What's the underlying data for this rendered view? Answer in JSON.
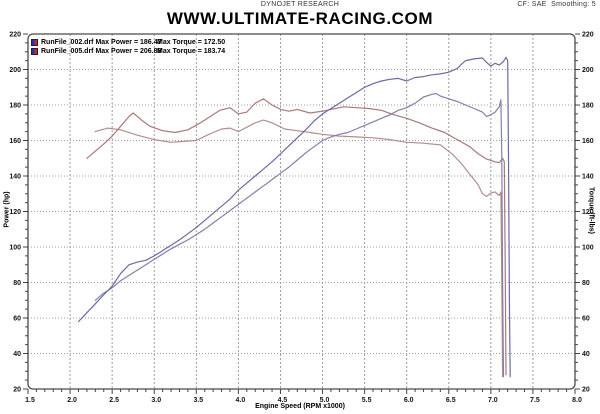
{
  "header": {
    "app_title": "DYNOJET RESEARCH",
    "settings": "CF: SAE  Smoothing: 5"
  },
  "legend": {
    "rows": [
      {
        "label": "RunFile_002.drf Max Power = 186.47",
        "torque": "Max Torque = 172.50"
      },
      {
        "label": "RunFile_005.drf Max Power = 206.88",
        "torque": "Max Torque = 183.74"
      }
    ],
    "swatch_colors": {
      "power": "#2233bb",
      "torque": "#cc2222"
    }
  },
  "chart_data": {
    "type": "line",
    "title": "WWW.ULTIMATE-RACING.COM",
    "xlabel": "Engine Speed (RPM x1000)",
    "ylabel_left": "Power (hp)",
    "ylabel_right": "Torque (ft-lbs)",
    "xlim": [
      1.5,
      8.0
    ],
    "ylim": [
      20,
      220
    ],
    "x_ticks": [
      1.5,
      2.0,
      2.5,
      3.0,
      3.5,
      4.0,
      4.5,
      5.0,
      5.5,
      6.0,
      6.5,
      7.0,
      7.5,
      8.0
    ],
    "y_ticks": [
      20,
      40,
      60,
      80,
      100,
      120,
      140,
      160,
      180,
      200,
      220
    ],
    "x_minor_step": 0.1,
    "y_minor_step": 5,
    "grid": "dotted",
    "grid_color": "#9c9c9c",
    "frame_color": "#4a4a4a",
    "tick_color": "#444444",
    "legend_position": "top-left",
    "series": [
      {
        "id": "runfile-002-torque",
        "name": "RunFile_002 Torque (max 172.50 ft-lbs)",
        "axis": "right",
        "color": "#b48e8e",
        "points": [
          [
            2.3,
            165
          ],
          [
            2.45,
            167
          ],
          [
            2.6,
            166
          ],
          [
            2.8,
            163
          ],
          [
            3.0,
            160.5
          ],
          [
            3.2,
            159
          ],
          [
            3.35,
            159.5
          ],
          [
            3.5,
            160
          ],
          [
            3.65,
            163.5
          ],
          [
            3.8,
            166.5
          ],
          [
            3.9,
            167
          ],
          [
            4.0,
            165
          ],
          [
            4.1,
            167.5
          ],
          [
            4.2,
            170
          ],
          [
            4.3,
            171.5
          ],
          [
            4.4,
            170
          ],
          [
            4.55,
            166.5
          ],
          [
            4.7,
            165.5
          ],
          [
            4.85,
            164.5
          ],
          [
            5.0,
            163.5
          ],
          [
            5.2,
            162.5
          ],
          [
            5.4,
            162
          ],
          [
            5.6,
            161.5
          ],
          [
            5.8,
            160.5
          ],
          [
            6.0,
            159
          ],
          [
            6.2,
            158.5
          ],
          [
            6.4,
            157.5
          ],
          [
            6.55,
            152
          ],
          [
            6.65,
            147
          ],
          [
            6.75,
            141
          ],
          [
            6.85,
            135
          ],
          [
            6.9,
            130
          ],
          [
            6.95,
            128.5
          ],
          [
            7.0,
            130.5
          ],
          [
            7.05,
            131
          ],
          [
            7.1,
            129
          ],
          [
            7.12,
            131
          ],
          [
            7.13,
            80
          ],
          [
            7.14,
            27
          ]
        ]
      },
      {
        "id": "runfile-005-torque",
        "name": "RunFile_005 Torque (max 183.74 ft-lbs)",
        "axis": "right",
        "color": "#aa7878",
        "points": [
          [
            2.2,
            150
          ],
          [
            2.3,
            154
          ],
          [
            2.4,
            158
          ],
          [
            2.5,
            162.5
          ],
          [
            2.6,
            168
          ],
          [
            2.7,
            173.5
          ],
          [
            2.75,
            175.5
          ],
          [
            2.85,
            171.5
          ],
          [
            2.95,
            168
          ],
          [
            3.1,
            165.5
          ],
          [
            3.25,
            164.5
          ],
          [
            3.4,
            166
          ],
          [
            3.55,
            170
          ],
          [
            3.65,
            173
          ],
          [
            3.78,
            177
          ],
          [
            3.9,
            178.5
          ],
          [
            4.0,
            175
          ],
          [
            4.1,
            176
          ],
          [
            4.2,
            181
          ],
          [
            4.3,
            183.5
          ],
          [
            4.4,
            180
          ],
          [
            4.5,
            177.5
          ],
          [
            4.6,
            176.5
          ],
          [
            4.7,
            177.5
          ],
          [
            4.85,
            175.5
          ],
          [
            5.0,
            176.5
          ],
          [
            5.1,
            177.5
          ],
          [
            5.25,
            179
          ],
          [
            5.4,
            178.5
          ],
          [
            5.55,
            178
          ],
          [
            5.7,
            177
          ],
          [
            5.85,
            174.5
          ],
          [
            6.0,
            172.5
          ],
          [
            6.15,
            170
          ],
          [
            6.3,
            167
          ],
          [
            6.45,
            164.5
          ],
          [
            6.6,
            160.5
          ],
          [
            6.75,
            156.5
          ],
          [
            6.85,
            152.5
          ],
          [
            6.95,
            149.5
          ],
          [
            7.05,
            148
          ],
          [
            7.1,
            147.5
          ],
          [
            7.14,
            150
          ],
          [
            7.16,
            148
          ],
          [
            7.17,
            90
          ],
          [
            7.18,
            28
          ]
        ]
      },
      {
        "id": "runfile-002-power",
        "name": "RunFile_002 Power (max 186.47 hp)",
        "axis": "left",
        "color": "#8080ac",
        "points": [
          [
            2.3,
            70
          ],
          [
            2.4,
            74
          ],
          [
            2.5,
            77
          ],
          [
            2.6,
            81
          ],
          [
            2.7,
            84
          ],
          [
            2.8,
            87
          ],
          [
            2.9,
            90
          ],
          [
            3.0,
            93
          ],
          [
            3.1,
            96
          ],
          [
            3.2,
            99
          ],
          [
            3.3,
            101.5
          ],
          [
            3.4,
            104
          ],
          [
            3.5,
            107
          ],
          [
            3.6,
            110
          ],
          [
            3.7,
            113.5
          ],
          [
            3.8,
            117
          ],
          [
            3.9,
            120.5
          ],
          [
            4.0,
            124
          ],
          [
            4.1,
            127.5
          ],
          [
            4.2,
            131
          ],
          [
            4.3,
            134.5
          ],
          [
            4.4,
            138
          ],
          [
            4.5,
            141.5
          ],
          [
            4.6,
            145
          ],
          [
            4.7,
            149
          ],
          [
            4.8,
            153
          ],
          [
            4.9,
            156.5
          ],
          [
            5.0,
            160
          ],
          [
            5.1,
            162
          ],
          [
            5.2,
            163.5
          ],
          [
            5.3,
            164.5
          ],
          [
            5.4,
            166.5
          ],
          [
            5.5,
            168.5
          ],
          [
            5.6,
            170.5
          ],
          [
            5.7,
            172.5
          ],
          [
            5.8,
            174.5
          ],
          [
            5.9,
            177
          ],
          [
            6.0,
            178.5
          ],
          [
            6.1,
            181
          ],
          [
            6.2,
            184.5
          ],
          [
            6.3,
            186
          ],
          [
            6.35,
            186.5
          ],
          [
            6.4,
            185
          ],
          [
            6.5,
            183.5
          ],
          [
            6.6,
            182
          ],
          [
            6.7,
            180
          ],
          [
            6.8,
            178
          ],
          [
            6.9,
            176
          ],
          [
            6.95,
            173.5
          ],
          [
            7.0,
            174.5
          ],
          [
            7.05,
            176
          ],
          [
            7.1,
            179
          ],
          [
            7.12,
            183
          ],
          [
            7.13,
            150
          ],
          [
            7.14,
            80
          ],
          [
            7.15,
            27
          ]
        ]
      },
      {
        "id": "runfile-005-power",
        "name": "RunFile_005 Power (max 206.88 hp)",
        "axis": "left",
        "color": "#6b6ba4",
        "points": [
          [
            2.1,
            58
          ],
          [
            2.2,
            63
          ],
          [
            2.3,
            68
          ],
          [
            2.4,
            73
          ],
          [
            2.5,
            78
          ],
          [
            2.6,
            85
          ],
          [
            2.7,
            90
          ],
          [
            2.8,
            91.5
          ],
          [
            2.9,
            92.5
          ],
          [
            3.0,
            95
          ],
          [
            3.1,
            98
          ],
          [
            3.2,
            101
          ],
          [
            3.3,
            104
          ],
          [
            3.4,
            107.5
          ],
          [
            3.5,
            111
          ],
          [
            3.6,
            115
          ],
          [
            3.7,
            119
          ],
          [
            3.8,
            123
          ],
          [
            3.9,
            127
          ],
          [
            4.0,
            132
          ],
          [
            4.1,
            136
          ],
          [
            4.2,
            140
          ],
          [
            4.3,
            144
          ],
          [
            4.4,
            148
          ],
          [
            4.5,
            152.5
          ],
          [
            4.6,
            157
          ],
          [
            4.7,
            161.5
          ],
          [
            4.8,
            166
          ],
          [
            4.9,
            171
          ],
          [
            5.0,
            175
          ],
          [
            5.1,
            178
          ],
          [
            5.2,
            181
          ],
          [
            5.3,
            184
          ],
          [
            5.4,
            187
          ],
          [
            5.5,
            190
          ],
          [
            5.6,
            192
          ],
          [
            5.7,
            193.5
          ],
          [
            5.8,
            194.5
          ],
          [
            5.9,
            195
          ],
          [
            6.0,
            193.5
          ],
          [
            6.1,
            195.5
          ],
          [
            6.2,
            196
          ],
          [
            6.3,
            197
          ],
          [
            6.4,
            197.5
          ],
          [
            6.5,
            198.5
          ],
          [
            6.6,
            200.5
          ],
          [
            6.65,
            203
          ],
          [
            6.7,
            205
          ],
          [
            6.8,
            206
          ],
          [
            6.9,
            206.5
          ],
          [
            6.95,
            204
          ],
          [
            7.0,
            202
          ],
          [
            7.05,
            203.5
          ],
          [
            7.1,
            202.5
          ],
          [
            7.15,
            204.5
          ],
          [
            7.18,
            206.9
          ],
          [
            7.2,
            205
          ],
          [
            7.21,
            150
          ],
          [
            7.22,
            70
          ],
          [
            7.23,
            27
          ]
        ]
      }
    ]
  }
}
